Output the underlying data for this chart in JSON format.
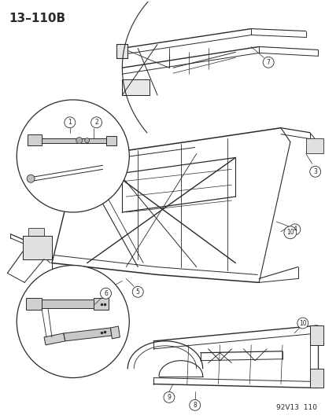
{
  "title_text": "13–110B",
  "watermark": "92V13  110",
  "bg_color": "#ffffff",
  "line_color": "#2a2a2a",
  "title_fontsize": 11,
  "watermark_fontsize": 6.5,
  "fig_width": 4.14,
  "fig_height": 5.33,
  "dpi": 100
}
